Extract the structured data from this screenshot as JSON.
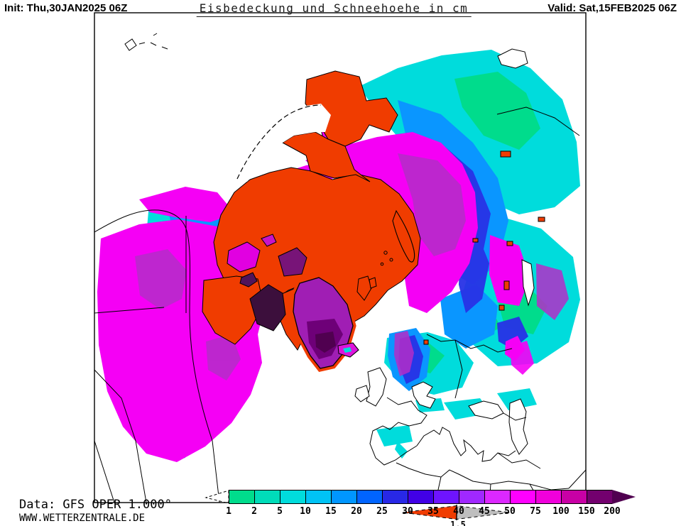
{
  "header": {
    "init_label": "Init: Thu,30JAN2025 06Z",
    "title": "Eisbedeckung und Schneehoehe in cm",
    "valid_label": "Valid: Sat,15FEB2025 06Z"
  },
  "footer": {
    "data_source": "Data: GFS OPER 1.000°",
    "website": "WWW.WETTERZENTRALE.DE"
  },
  "legend": {
    "unit": "cm",
    "values": [
      "1",
      "2",
      "5",
      "10",
      "15",
      "20",
      "25",
      "30",
      "35",
      "40",
      "45",
      "50",
      "75",
      "100",
      "150",
      "200"
    ],
    "colors": [
      "#00DC8C",
      "#00DCB9",
      "#00DCDC",
      "#00C3F5",
      "#0096FF",
      "#0064FF",
      "#2828E6",
      "#4100E6",
      "#6E14FF",
      "#A028FF",
      "#DC28FF",
      "#FF00FF",
      "#F000DC",
      "#C800A5",
      "#73006E"
    ],
    "overflow_color": "#500050",
    "ice_marker": {
      "label": "1.5",
      "ice_color": "#F03C00",
      "gray_color": "#BEBEBE"
    }
  },
  "map": {
    "colors": {
      "sea_ice": "#F03C00",
      "snow_deep_magenta": "#F500F5",
      "snow_purple_patch": "#B42DC8",
      "snow_mid_blue": "#0A96FF",
      "snow_deep_blue": "#2832E6",
      "snow_light_cyan": "#00DCDC",
      "snow_light_green": "#00DC8C",
      "greenland_high": "#A01EB4",
      "greenland_mid": "#6E0078",
      "greenland_core": "#500050",
      "land": "#FFFFFF",
      "coastline": "#000000"
    }
  }
}
